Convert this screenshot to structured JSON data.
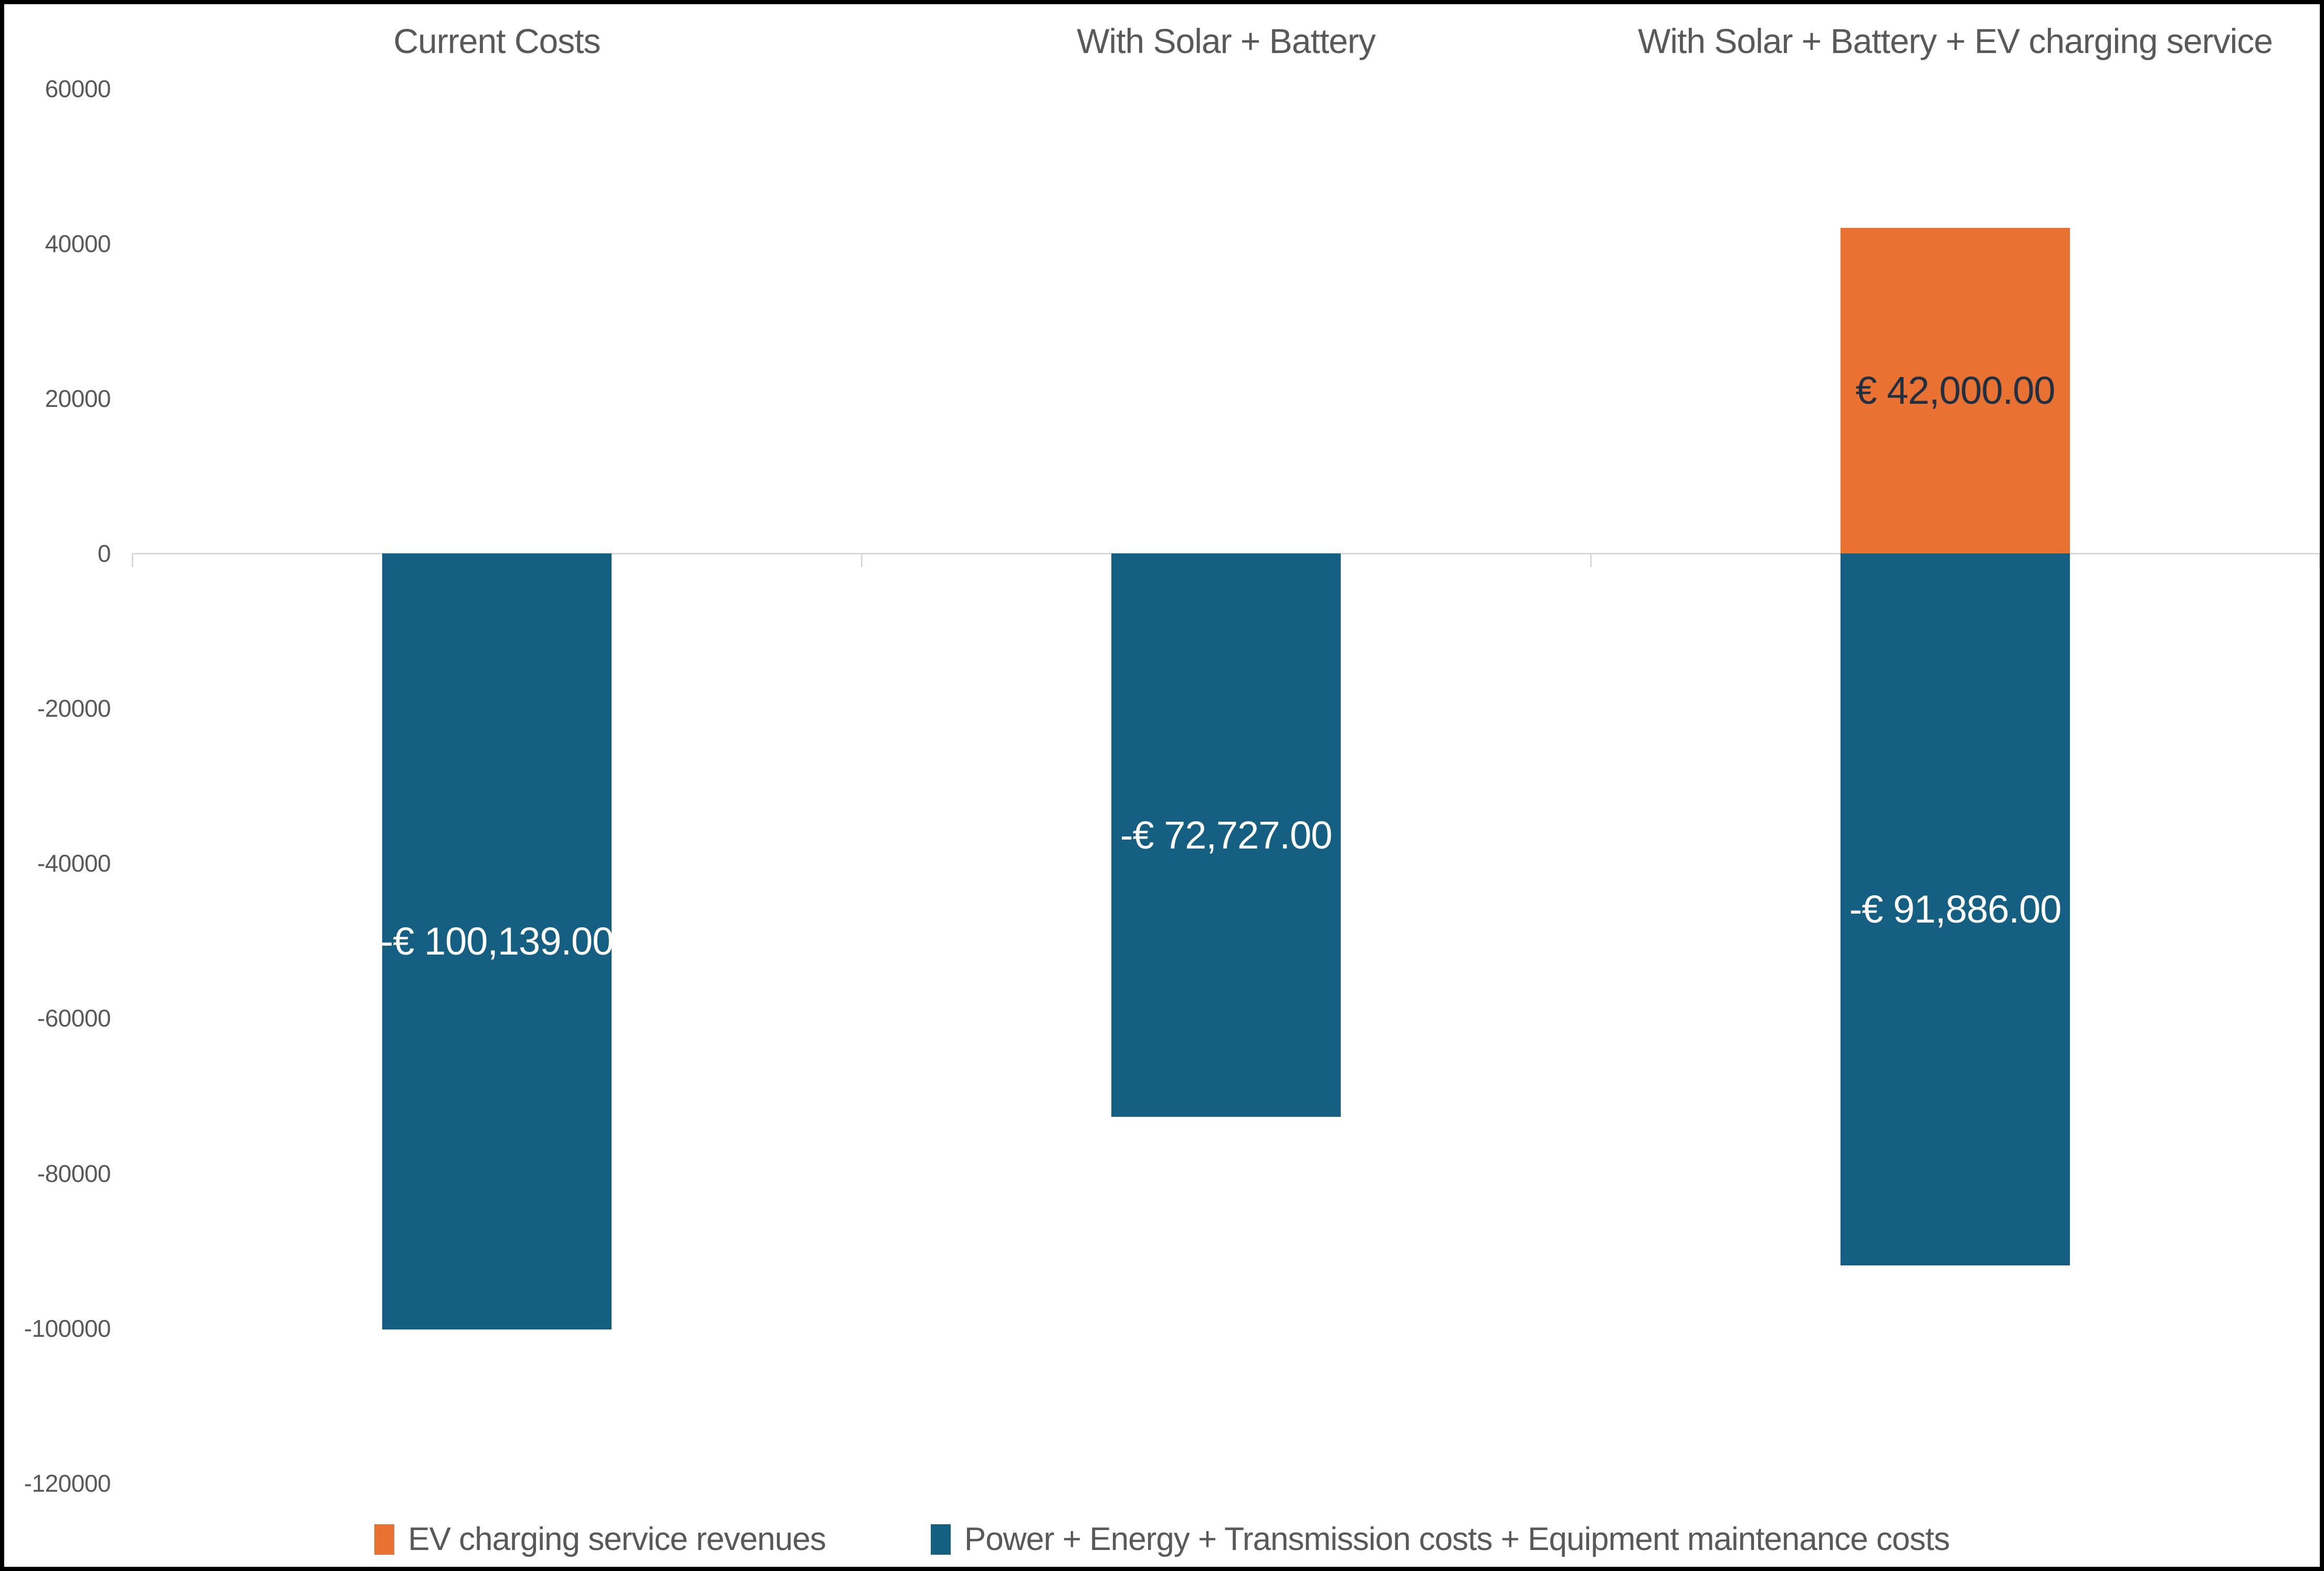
{
  "chart_data": {
    "type": "bar",
    "stacked": true,
    "categories": [
      "Current Costs",
      "With Solar + Battery",
      "With Solar + Battery + EV charging service"
    ],
    "series": [
      {
        "name": "EV charging service revenues",
        "color": "#E97132",
        "label_color": "#1F3042",
        "values": [
          0,
          0,
          42000
        ],
        "labels": [
          null,
          null,
          "€ 42,000.00"
        ]
      },
      {
        "name": "Power + Energy + Transmission costs + Equipment maintenance costs",
        "color": "#156082",
        "label_color": "#FFFFFF",
        "values": [
          -100139,
          -72727,
          -91886
        ],
        "labels": [
          "-€ 100,139.00",
          "-€ 72,727.00",
          "-€ 91,886.00"
        ]
      }
    ],
    "y_axis": {
      "min": -120000,
      "max": 60000,
      "step": 20000,
      "tick_labels": [
        "60000",
        "40000",
        "20000",
        "0",
        "-20000",
        "-40000",
        "-60000",
        "-80000",
        "-100000",
        "-120000"
      ],
      "axis_line_color": "#D9D9D9",
      "tick_label_color": "#595959"
    },
    "legend": {
      "position": "bottom"
    },
    "gridlines": "none",
    "background_color": "#FFFFFF",
    "frame_color": "#000000",
    "category_title_color": "#595959"
  }
}
